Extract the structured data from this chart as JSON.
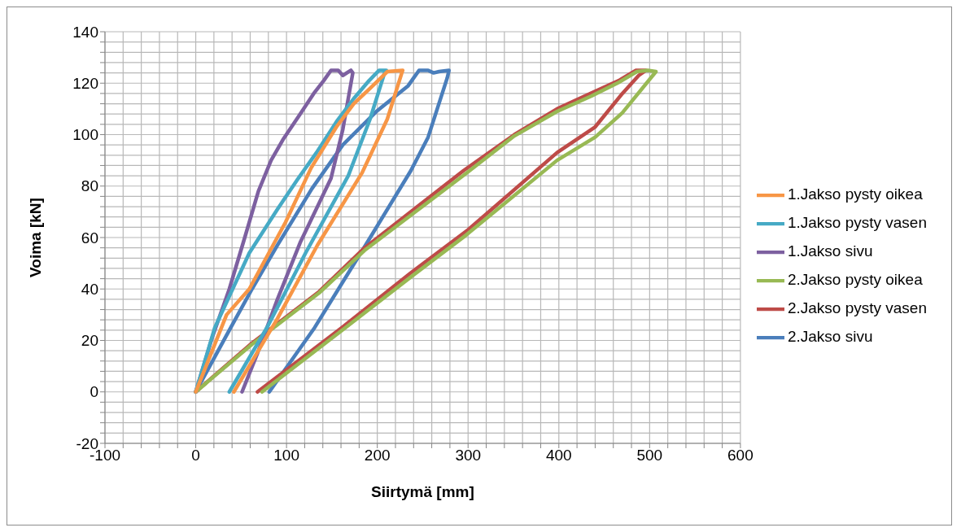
{
  "chart_data": {
    "type": "line",
    "xlabel": "Siirtymä [mm]",
    "ylabel": "Voima [kN]",
    "xlim": [
      -100,
      600
    ],
    "xticks": [
      -100,
      {
        "value": -80,
        "label": null
      },
      {
        "value": -60,
        "label": null
      },
      {
        "value": -40,
        "label": null
      },
      {
        "value": -20,
        "label": null
      },
      0,
      {
        "value": 20,
        "label": null
      },
      {
        "value": 40,
        "label": null
      },
      {
        "value": 60,
        "label": null
      },
      {
        "value": 80,
        "label": null
      },
      100,
      {
        "value": 120,
        "label": null
      },
      {
        "value": 140,
        "label": null
      },
      {
        "value": 160,
        "label": null
      },
      {
        "value": 180,
        "label": null
      },
      200,
      {
        "value": 220,
        "label": null
      },
      {
        "value": 240,
        "label": null
      },
      {
        "value": 260,
        "label": null
      },
      {
        "value": 280,
        "label": null
      },
      300,
      {
        "value": 320,
        "label": null
      },
      {
        "value": 340,
        "label": null
      },
      {
        "value": 360,
        "label": null
      },
      {
        "value": 380,
        "label": null
      },
      400,
      {
        "value": 420,
        "label": null
      },
      {
        "value": 440,
        "label": null
      },
      {
        "value": 460,
        "label": null
      },
      {
        "value": 480,
        "label": null
      },
      500,
      {
        "value": 520,
        "label": null
      },
      {
        "value": 540,
        "label": null
      },
      {
        "value": 560,
        "label": null
      },
      {
        "value": 580,
        "label": null
      },
      600
    ],
    "ylim": [
      -20,
      140
    ],
    "yticks": [
      -20,
      {
        "value": -16,
        "label": null
      },
      {
        "value": -12,
        "label": null
      },
      {
        "value": -8,
        "label": null
      },
      {
        "value": -4,
        "label": null
      },
      0,
      {
        "value": 4,
        "label": null
      },
      {
        "value": 8,
        "label": null
      },
      {
        "value": 12,
        "label": null
      },
      {
        "value": 16,
        "label": null
      },
      20,
      {
        "value": 24,
        "label": null
      },
      {
        "value": 28,
        "label": null
      },
      {
        "value": 32,
        "label": null
      },
      {
        "value": 36,
        "label": null
      },
      40,
      {
        "value": 44,
        "label": null
      },
      {
        "value": 48,
        "label": null
      },
      {
        "value": 52,
        "label": null
      },
      {
        "value": 56,
        "label": null
      },
      60,
      {
        "value": 64,
        "label": null
      },
      {
        "value": 68,
        "label": null
      },
      {
        "value": 72,
        "label": null
      },
      {
        "value": 76,
        "label": null
      },
      80,
      {
        "value": 84,
        "label": null
      },
      {
        "value": 88,
        "label": null
      },
      {
        "value": 92,
        "label": null
      },
      {
        "value": 96,
        "label": null
      },
      100,
      {
        "value": 104,
        "label": null
      },
      {
        "value": 108,
        "label": null
      },
      {
        "value": 112,
        "label": null
      },
      {
        "value": 116,
        "label": null
      },
      120,
      {
        "value": 124,
        "label": null
      },
      {
        "value": 128,
        "label": null
      },
      {
        "value": 132,
        "label": null
      },
      {
        "value": 136,
        "label": null
      },
      140
    ],
    "grid": true,
    "legend": "right",
    "marker": "none",
    "line_style": "solid",
    "series": [
      {
        "name": "2.Jakso sivu",
        "color": "#4a7ebb",
        "x": [
          0,
          37,
          62,
          90,
          128,
          162,
          199,
          234,
          246,
          256,
          262,
          268,
          279,
          277,
          256,
          237,
          187,
          131,
          81
        ],
        "values": [
          0,
          24,
          40,
          57,
          79,
          96,
          109,
          119,
          125,
          125,
          124,
          124.5,
          125,
          122,
          99,
          86,
          57,
          25,
          0
        ]
      },
      {
        "name": "2.Jakso pysty vasen",
        "color": "#be4b48",
        "x": [
          0,
          62,
          136,
          186,
          295,
          351,
          398,
          435,
          466,
          485,
          496,
          488,
          470,
          440,
          398,
          300,
          236,
          161,
          68
        ],
        "values": [
          0,
          19,
          39,
          56,
          86,
          100,
          110,
          116,
          121,
          125,
          125,
          123,
          116,
          103,
          93,
          63,
          46,
          25,
          0
        ]
      },
      {
        "name": "2.Jakso pysty oikea",
        "color": "#98b954",
        "x": [
          0,
          62,
          136,
          186,
          298,
          351,
          398,
          436,
          467,
          486,
          498,
          507,
          470,
          440,
          398,
          298,
          240,
          165,
          73
        ],
        "values": [
          0,
          18.5,
          38.5,
          55,
          85,
          99.5,
          109,
          115,
          120.5,
          124.5,
          125,
          124.5,
          108.5,
          99,
          90,
          61,
          45.5,
          25,
          0
        ]
      },
      {
        "name": "1.Jakso sivu",
        "color": "#7d60a0",
        "x": [
          0,
          18,
          37,
          54,
          69,
          83,
          96,
          115,
          130,
          141,
          149,
          157,
          162,
          171,
          173,
          162,
          149,
          115,
          90,
          68,
          51
        ],
        "values": [
          0,
          21,
          40,
          60,
          78,
          90,
          98,
          108,
          116,
          121,
          125,
          125,
          123,
          125,
          124,
          102,
          83,
          58,
          36,
          15,
          0
        ]
      },
      {
        "name": "1.Jakso pysty vasen",
        "color": "#46aac5",
        "x": [
          0,
          21,
          59,
          90,
          112,
          133,
          155,
          174,
          191,
          202,
          210,
          208,
          192,
          168,
          121,
          80,
          37
        ],
        "values": [
          0,
          25,
          54,
          71,
          82.5,
          93,
          105,
          114,
          121,
          125,
          125,
          124,
          106,
          84,
          54,
          26,
          0
        ]
      },
      {
        "name": "1.Jakso pysty oikea",
        "color": "#f79646",
        "x": [
          0,
          34,
          59,
          99,
          127,
          155,
          174,
          192,
          211,
          228,
          227,
          211,
          183,
          134,
          90,
          42
        ],
        "values": [
          0,
          30,
          40,
          66,
          87,
          103,
          112,
          118,
          124.5,
          125,
          124,
          106,
          85,
          57,
          28.5,
          0
        ]
      }
    ]
  }
}
